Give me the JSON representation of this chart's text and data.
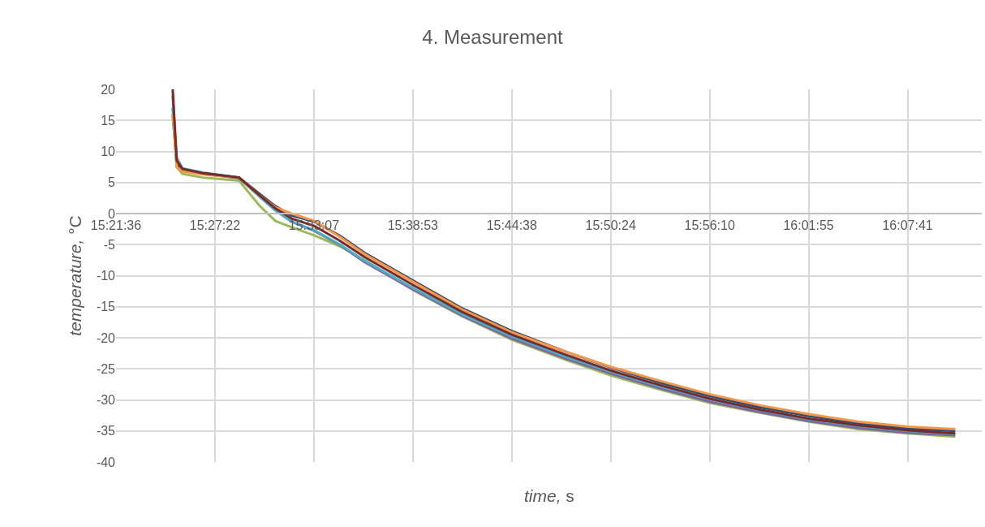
{
  "chart_data": {
    "type": "line",
    "title": "4. Measurement",
    "xlabel": "time, s",
    "ylabel": "temperature, °C",
    "x": [
      15.415,
      15.4189,
      15.4244,
      15.444,
      15.4794,
      15.499,
      15.5147,
      15.5304,
      15.5524,
      15.5775,
      15.6011,
      15.6482,
      15.6953,
      15.744,
      15.7974,
      15.8406,
      15.8916,
      15.9363,
      15.9858,
      16.0322,
      16.0801,
      16.1287,
      16.1743
    ],
    "series": [
      {
        "color": "#9bbb59",
        "values": [
          17,
          7.5,
          6.4,
          5.8,
          5.3,
          1.3,
          -1.2,
          -2.2,
          -3.5,
          -5.3,
          -7.5,
          -12.3,
          -16.5,
          -20.3,
          -23.6,
          -26.1,
          -28.5,
          -30.5,
          -32.1,
          -33.5,
          -34.7,
          -35.4,
          -35.9
        ]
      },
      {
        "color": "#8064a2",
        "values": [
          19,
          8,
          7,
          6.4,
          5.7,
          2.8,
          0.5,
          -1.3,
          -2.8,
          -5.1,
          -7.8,
          -12.2,
          -16.4,
          -20.1,
          -23.4,
          -25.8,
          -28.3,
          -30.3,
          -32,
          -33.4,
          -34.5,
          -35.3,
          -35.7
        ]
      },
      {
        "color": "#4bacc6",
        "values": [
          17,
          9,
          7.3,
          6.6,
          5.8,
          2.8,
          0.5,
          -1.3,
          -2.7,
          -5,
          -7.6,
          -12,
          -16.2,
          -19.8,
          -23.1,
          -25.5,
          -28,
          -29.9,
          -31.7,
          -33.1,
          -34.2,
          -35,
          -35.5
        ]
      },
      {
        "color": "#2c4d75",
        "values": [
          16,
          8,
          7,
          6.5,
          5.8,
          3.2,
          1.2,
          -0.3,
          -1.3,
          -3.6,
          -6.3,
          -10.8,
          -15.2,
          -18.9,
          -22.3,
          -24.8,
          -27.4,
          -29.4,
          -31.2,
          -32.6,
          -33.8,
          -34.6,
          -35
        ]
      },
      {
        "color": "#f79646",
        "values": [
          16,
          7.5,
          6.8,
          6.3,
          5.8,
          3,
          1,
          0,
          -1.2,
          -3.8,
          -6.5,
          -11,
          -15.4,
          -19.1,
          -22.3,
          -24.7,
          -27.1,
          -29.1,
          -30.9,
          -32.3,
          -33.5,
          -34.3,
          -34.7
        ]
      },
      {
        "color": "#772c2a",
        "values": [
          20,
          8.5,
          7.2,
          6.5,
          5.8,
          3,
          0.8,
          -0.8,
          -2,
          -4.4,
          -7,
          -11.5,
          -15.8,
          -19.5,
          -22.8,
          -25.3,
          -27.8,
          -29.8,
          -31.6,
          -33,
          -34.1,
          -34.9,
          -35.4
        ]
      }
    ],
    "xlim": [
      15.36,
      16.2
    ],
    "xticks": [
      {
        "value": 15.36,
        "label": "15:21:36"
      },
      {
        "value": 15.456,
        "label": "15:27:22"
      },
      {
        "value": 15.552,
        "label": "15:33:07"
      },
      {
        "value": 15.648,
        "label": "15:38:53"
      },
      {
        "value": 15.744,
        "label": "15:44:38"
      },
      {
        "value": 15.84,
        "label": "15:50:24"
      },
      {
        "value": 15.936,
        "label": "15:56:10"
      },
      {
        "value": 16.032,
        "label": "16:01:55"
      },
      {
        "value": 16.128,
        "label": "16:07:41"
      }
    ],
    "ylim": [
      -40,
      20
    ],
    "yticks": [
      -40,
      -35,
      -30,
      -25,
      -20,
      -15,
      -10,
      -5,
      0,
      5,
      10,
      15,
      20
    ],
    "grid": true,
    "marker": "none",
    "line_style": "solid"
  }
}
